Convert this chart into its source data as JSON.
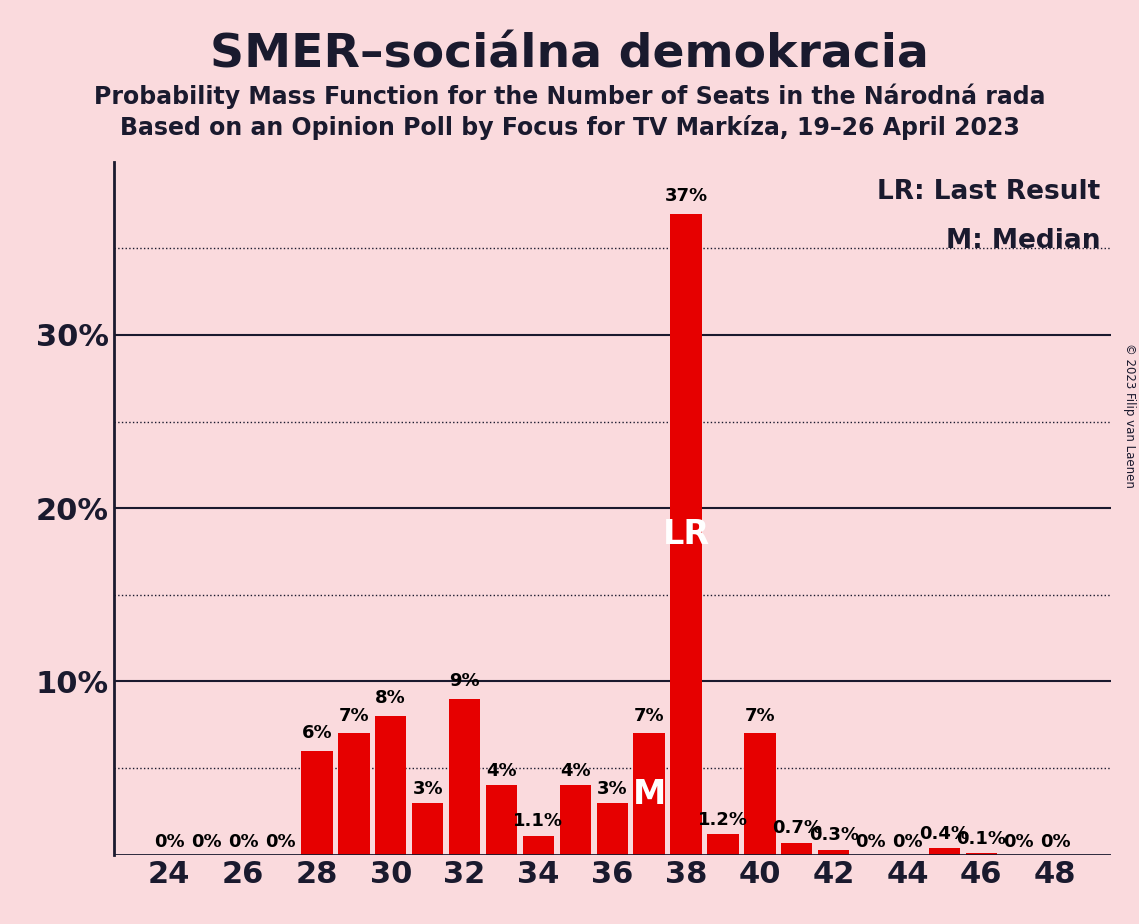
{
  "title": "SMER–sociálna demokracia",
  "subtitle1": "Probability Mass Function for the Number of Seats in the Národná rada",
  "subtitle2": "Based on an Opinion Poll by Focus for TV Markíza, 19–26 April 2023",
  "copyright": "© 2023 Filip van Laenen",
  "seats": [
    24,
    25,
    26,
    27,
    28,
    29,
    30,
    31,
    32,
    33,
    34,
    35,
    36,
    37,
    38,
    39,
    40,
    41,
    42,
    43,
    44,
    45,
    46,
    47,
    48
  ],
  "probabilities": [
    0.0,
    0.0,
    0.0,
    0.0,
    0.06,
    0.07,
    0.08,
    0.03,
    0.09,
    0.04,
    0.011,
    0.04,
    0.03,
    0.07,
    0.37,
    0.012,
    0.07,
    0.007,
    0.003,
    0.0,
    0.0,
    0.004,
    0.001,
    0.0,
    0.0
  ],
  "bar_labels": [
    "0%",
    "0%",
    "0%",
    "0%",
    "6%",
    "7%",
    "8%",
    "3%",
    "9%",
    "4%",
    "1.1%",
    "4%",
    "3%",
    "7%",
    "37%",
    "1.2%",
    "7%",
    "0.7%",
    "0.3%",
    "0%",
    "0%",
    "0.4%",
    "0.1%",
    "0%",
    "0%"
  ],
  "bar_color": "#e60000",
  "background_color": "#fadadd",
  "lr_seat": 38,
  "median_seat": 37,
  "lr_label": "LR",
  "median_label": "M",
  "xlim": [
    22.5,
    49.5
  ],
  "ylim": [
    0,
    0.4
  ],
  "solid_lines": [
    0.1,
    0.2,
    0.3
  ],
  "dotted_lines": [
    0.05,
    0.15,
    0.25,
    0.35
  ],
  "ytick_positions": [
    0.1,
    0.2,
    0.3
  ],
  "ytick_labels": [
    "10%",
    "20%",
    "30%"
  ],
  "xticks": [
    24,
    26,
    28,
    30,
    32,
    34,
    36,
    38,
    40,
    42,
    44,
    46,
    48
  ],
  "legend_lr": "LR: Last Result",
  "legend_m": "M: Median",
  "title_fontsize": 34,
  "subtitle_fontsize": 17,
  "axis_fontsize": 22,
  "bar_label_fontsize": 13,
  "legend_fontsize": 19,
  "lr_label_fontsize": 24,
  "median_label_fontsize": 24
}
